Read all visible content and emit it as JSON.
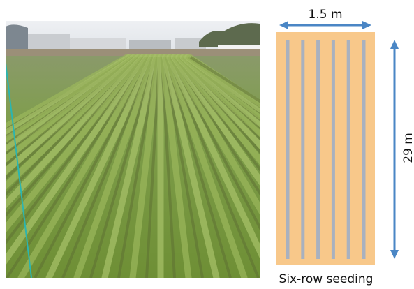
{
  "diagram": {
    "width_label": "1.5 m",
    "length_label": "29 m",
    "caption": "Six-row seeding"
  }
}
